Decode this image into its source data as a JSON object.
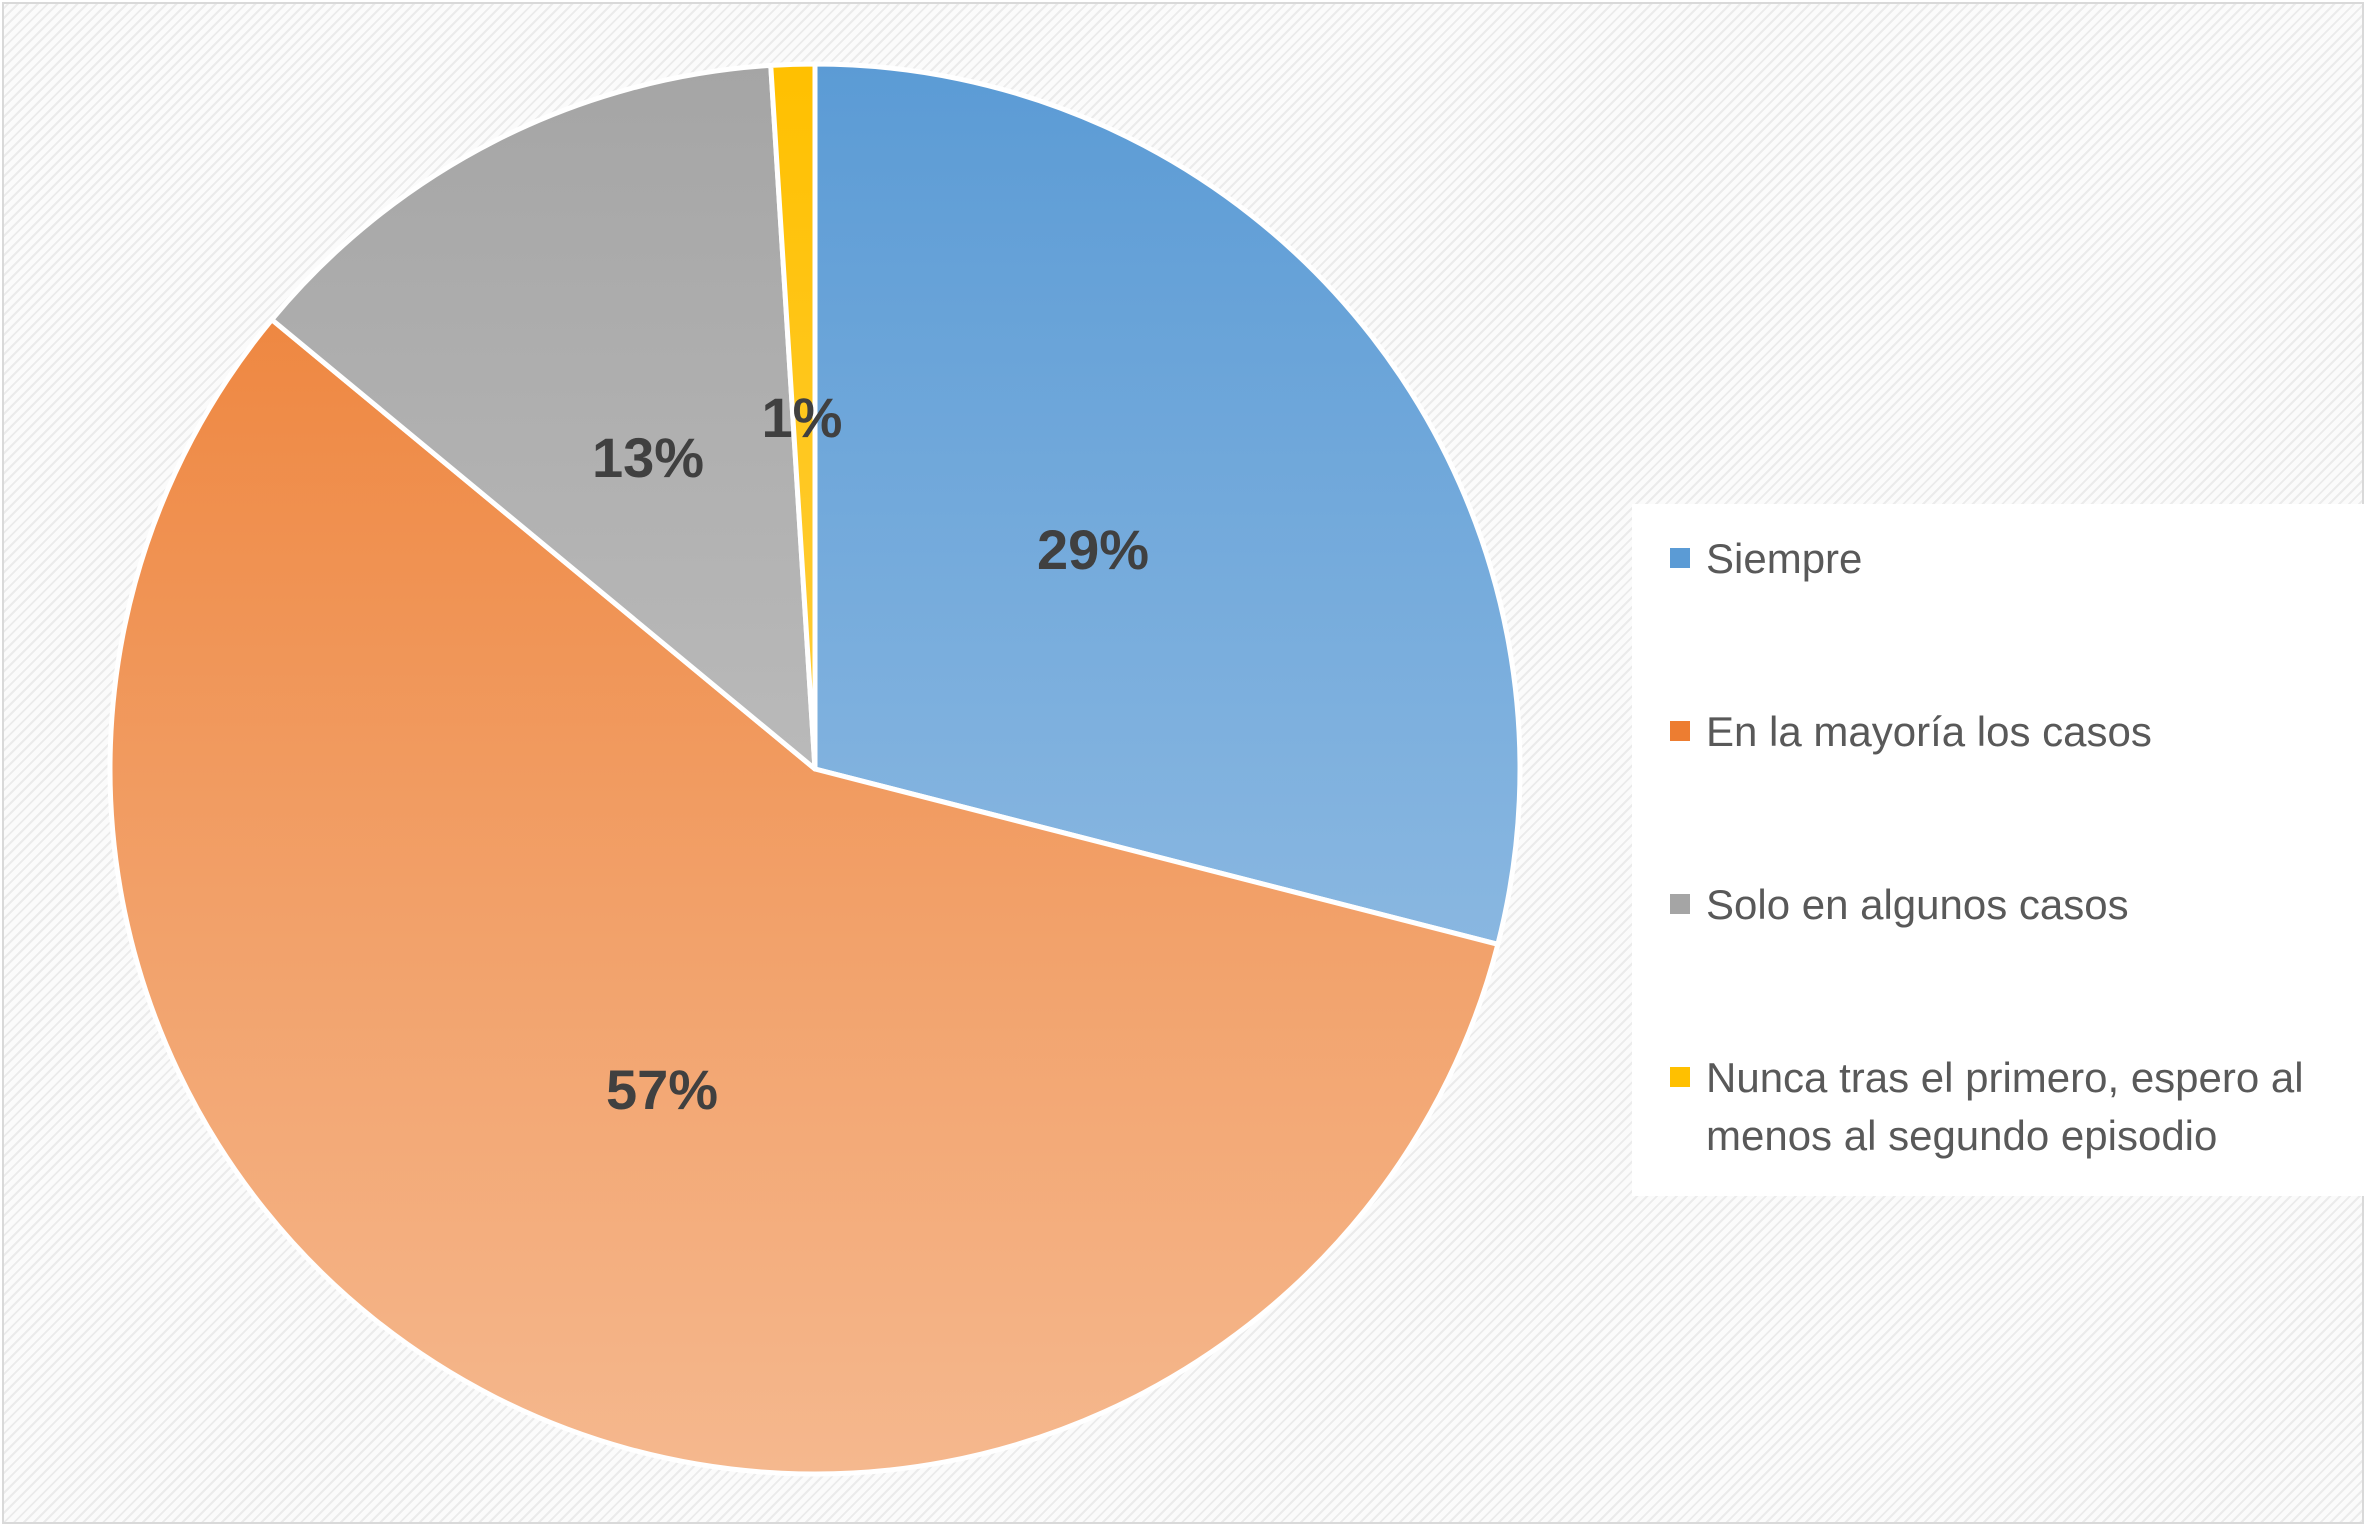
{
  "chart_data": {
    "type": "pie",
    "title": "",
    "categories": [
      "Siempre",
      "En la mayoría los casos",
      "Solo en algunos casos",
      "Nunca tras el primero, espero al menos al segundo episodio"
    ],
    "values": [
      29,
      57,
      13,
      1
    ],
    "data_labels": [
      "29%",
      "57%",
      "13%",
      "1%"
    ],
    "colors": [
      "#5b9bd5",
      "#ed7d31",
      "#a5a5a5",
      "#ffc000"
    ],
    "legend_position": "right"
  }
}
